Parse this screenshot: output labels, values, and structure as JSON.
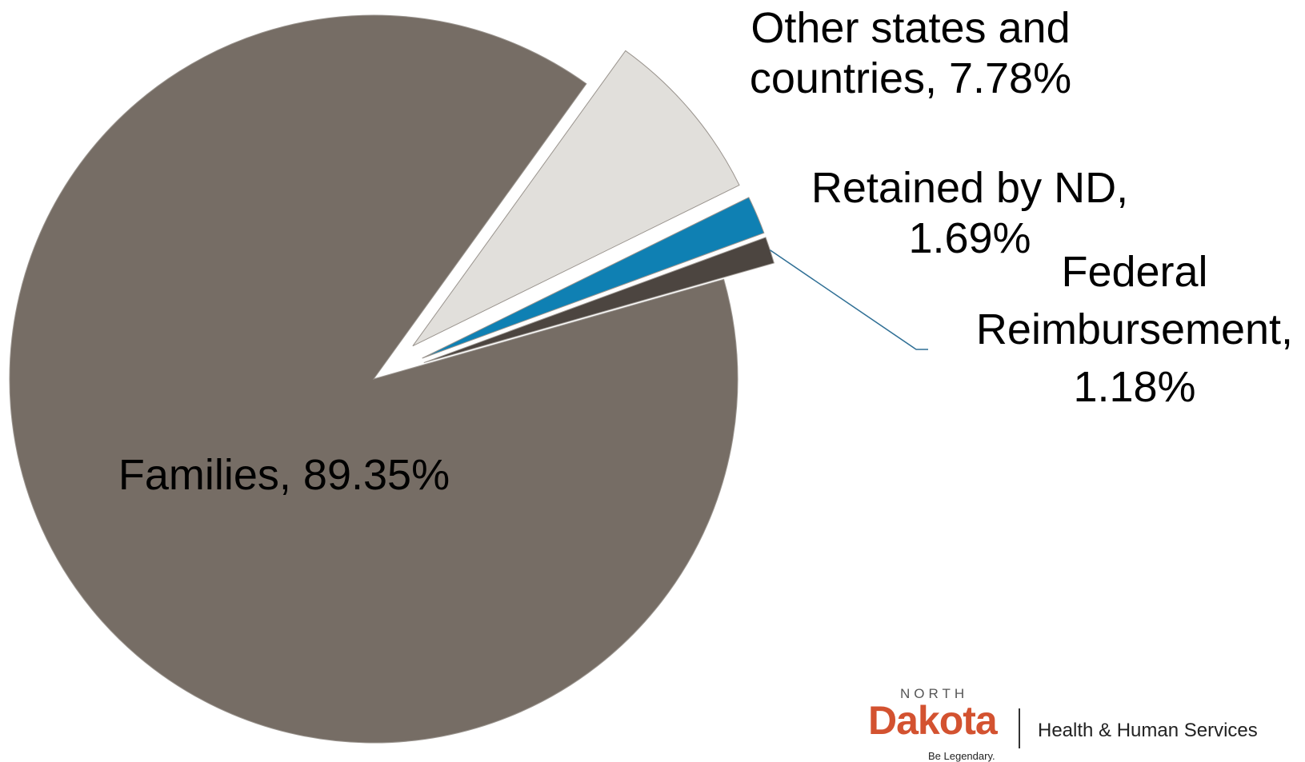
{
  "chart_data": {
    "type": "pie",
    "title": "",
    "slices": [
      {
        "label": "Families",
        "value": 89.35,
        "display": "Families, 89.35%",
        "color": "#766d65"
      },
      {
        "label": "Other states and countries",
        "value": 7.78,
        "display": "Other states and countries, 7.78%",
        "color": "#e1dfdb"
      },
      {
        "label": "Retained by ND",
        "value": 1.69,
        "display": "Retained by ND, 1.69%",
        "color": "#0f80b3"
      },
      {
        "label": "Federal Reimbursement",
        "value": 1.18,
        "display": "Federal Reimbursement, 1.18%",
        "color": "#4c4540"
      }
    ],
    "label_lines": [
      [
        "Families, 89.35%"
      ],
      [
        "Other states and",
        "countries, 7.78%"
      ],
      [
        "Retained by ND,",
        "1.69%"
      ],
      [
        "Federal",
        "Reimbursement,",
        "1.18%"
      ]
    ],
    "exploded": true,
    "leader_line_color": "#2f6f95"
  },
  "logo": {
    "north": "NORTH",
    "dakota": "Dakota",
    "department": "Health & Human Services",
    "tagline": "Be Legendary."
  }
}
